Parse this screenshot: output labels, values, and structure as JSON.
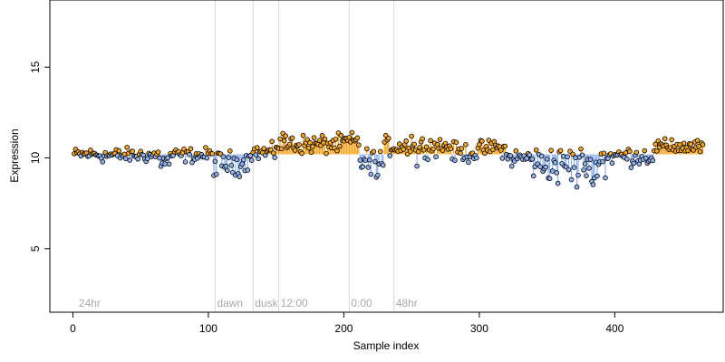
{
  "chart_data": {
    "type": "scatter",
    "xlabel": "Sample index",
    "ylabel": "Expression",
    "xlim": [
      -17,
      480
    ],
    "ylim": [
      1.5,
      18.7
    ],
    "xticks": [
      0,
      100,
      200,
      300,
      400
    ],
    "yticks": [
      5,
      10,
      15
    ],
    "baseline": 10.2,
    "grid": false,
    "colors": {
      "point_fill_high": "#f5a623",
      "point_fill_low": "#8fb3f0",
      "bar_high": "#f5a623",
      "bar_low": "#8fb3f0",
      "marker_line": "#d9d9d9",
      "marker_text": "#a8a8a8",
      "axis": "#000000"
    },
    "markers": [
      {
        "x": 3,
        "label": "24hr",
        "line": false
      },
      {
        "x": 105,
        "label": "dawn",
        "line": true
      },
      {
        "x": 133,
        "label": "dusk",
        "line": true
      },
      {
        "x": 152,
        "label": "12:00",
        "line": true
      },
      {
        "x": 204,
        "label": "0:00",
        "line": true
      },
      {
        "x": 237,
        "label": "48hr",
        "line": true
      }
    ],
    "series": [
      {
        "x_start": 1,
        "x_end": 465,
        "segments": [
          {
            "x0": 1,
            "x1": 20,
            "level": 10.2,
            "noise": 0.25
          },
          {
            "x0": 20,
            "x1": 65,
            "level": 10.15,
            "noise": 0.3
          },
          {
            "x0": 65,
            "x1": 72,
            "level": 9.8,
            "noise": 0.35
          },
          {
            "x0": 72,
            "x1": 104,
            "level": 10.15,
            "noise": 0.3
          },
          {
            "x0": 104,
            "x1": 130,
            "level": 9.7,
            "noise": 0.5
          },
          {
            "x0": 130,
            "x1": 150,
            "level": 10.3,
            "noise": 0.35
          },
          {
            "x0": 150,
            "x1": 200,
            "level": 10.75,
            "noise": 0.4
          },
          {
            "x0": 200,
            "x1": 212,
            "level": 10.9,
            "noise": 0.35
          },
          {
            "x0": 212,
            "x1": 230,
            "level": 9.8,
            "noise": 0.55
          },
          {
            "x0": 230,
            "x1": 280,
            "level": 10.65,
            "noise": 0.4
          },
          {
            "x0": 280,
            "x1": 300,
            "level": 10.3,
            "noise": 0.4
          },
          {
            "x0": 300,
            "x1": 320,
            "level": 10.5,
            "noise": 0.35
          },
          {
            "x0": 320,
            "x1": 340,
            "level": 10.0,
            "noise": 0.4
          },
          {
            "x0": 340,
            "x1": 390,
            "level": 9.7,
            "noise": 0.7
          },
          {
            "x0": 390,
            "x1": 430,
            "level": 10.1,
            "noise": 0.4
          },
          {
            "x0": 430,
            "x1": 465,
            "level": 10.6,
            "noise": 0.3
          }
        ],
        "dips": [
          {
            "x": 106,
            "y": 9.1
          },
          {
            "x": 118,
            "y": 9.2
          },
          {
            "x": 127,
            "y": 9.3
          },
          {
            "x": 220,
            "y": 9.1
          },
          {
            "x": 225,
            "y": 9.05
          },
          {
            "x": 254,
            "y": 9.55
          },
          {
            "x": 358,
            "y": 8.6
          },
          {
            "x": 368,
            "y": 8.8
          },
          {
            "x": 372,
            "y": 8.4
          },
          {
            "x": 383,
            "y": 8.7
          },
          {
            "x": 387,
            "y": 9.0
          },
          {
            "x": 393,
            "y": 8.9
          }
        ],
        "peaks": [
          {
            "x": 155,
            "y": 11.35
          },
          {
            "x": 162,
            "y": 11.1
          },
          {
            "x": 206,
            "y": 11.4
          },
          {
            "x": 250,
            "y": 11.2
          },
          {
            "x": 311,
            "y": 10.9
          },
          {
            "x": 442,
            "y": 11.0
          }
        ]
      }
    ]
  }
}
